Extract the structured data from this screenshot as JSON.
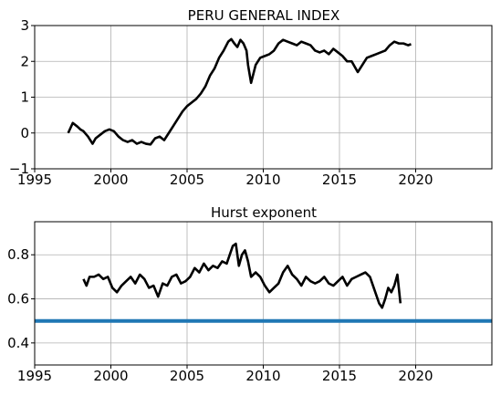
{
  "chart_data": [
    {
      "type": "line",
      "title": "PERU GENERAL INDEX",
      "xlabel": "",
      "ylabel": "",
      "xlim": [
        1995,
        2025
      ],
      "ylim": [
        -1,
        3
      ],
      "xticks": [
        1995,
        2000,
        2005,
        2010,
        2015,
        2020
      ],
      "yticks": [
        -1,
        0,
        1,
        2,
        3
      ],
      "grid": true,
      "series": [
        {
          "color": "#000000",
          "x": [
            1997.2,
            1997.5,
            1997.8,
            1998.0,
            1998.2,
            1998.5,
            1998.8,
            1999.0,
            1999.3,
            1999.6,
            1999.9,
            2000.2,
            2000.5,
            2000.8,
            2001.1,
            2001.4,
            2001.7,
            2002.0,
            2002.3,
            2002.6,
            2002.9,
            2003.2,
            2003.5,
            2003.8,
            2004.1,
            2004.4,
            2004.7,
            2005.0,
            2005.3,
            2005.6,
            2005.9,
            2006.2,
            2006.5,
            2006.8,
            2007.1,
            2007.4,
            2007.7,
            2007.9,
            2008.1,
            2008.3,
            2008.5,
            2008.7,
            2008.9,
            2009.0,
            2009.2,
            2009.5,
            2009.8,
            2010.1,
            2010.4,
            2010.7,
            2011.0,
            2011.3,
            2011.6,
            2011.9,
            2012.2,
            2012.5,
            2012.8,
            2013.1,
            2013.4,
            2013.7,
            2014.0,
            2014.3,
            2014.6,
            2014.9,
            2015.2,
            2015.5,
            2015.8,
            2016.0,
            2016.2,
            2016.5,
            2016.8,
            2017.1,
            2017.4,
            2017.7,
            2018.0,
            2018.3,
            2018.6,
            2018.9,
            2019.2,
            2019.5,
            2019.7
          ],
          "y": [
            0.0,
            0.28,
            0.18,
            0.1,
            0.05,
            -0.1,
            -0.3,
            -0.15,
            -0.05,
            0.05,
            0.1,
            0.05,
            -0.1,
            -0.2,
            -0.25,
            -0.2,
            -0.3,
            -0.25,
            -0.3,
            -0.32,
            -0.15,
            -0.1,
            -0.2,
            0.0,
            0.2,
            0.4,
            0.6,
            0.75,
            0.85,
            0.95,
            1.1,
            1.3,
            1.6,
            1.8,
            2.1,
            2.3,
            2.55,
            2.62,
            2.5,
            2.4,
            2.6,
            2.5,
            2.3,
            1.9,
            1.4,
            1.9,
            2.1,
            2.15,
            2.2,
            2.3,
            2.5,
            2.6,
            2.55,
            2.5,
            2.45,
            2.55,
            2.5,
            2.45,
            2.3,
            2.25,
            2.3,
            2.2,
            2.35,
            2.25,
            2.15,
            2.0,
            2.0,
            1.85,
            1.7,
            1.9,
            2.1,
            2.15,
            2.2,
            2.25,
            2.3,
            2.45,
            2.55,
            2.5,
            2.5,
            2.45,
            2.48
          ]
        }
      ]
    },
    {
      "type": "line",
      "title": "Hurst exponent",
      "xlabel": "",
      "ylabel": "",
      "xlim": [
        1995,
        2025
      ],
      "ylim": [
        0.3,
        0.95
      ],
      "xticks": [
        1995,
        2000,
        2005,
        2010,
        2015,
        2020
      ],
      "yticks": [
        0.4,
        0.6,
        0.8
      ],
      "grid": true,
      "series": [
        {
          "color": "#000000",
          "x": [
            1998.2,
            1998.4,
            1998.6,
            1998.9,
            1999.2,
            1999.5,
            1999.8,
            2000.1,
            2000.4,
            2000.7,
            2001.0,
            2001.3,
            2001.6,
            2001.9,
            2002.2,
            2002.5,
            2002.8,
            2003.1,
            2003.4,
            2003.7,
            2004.0,
            2004.3,
            2004.6,
            2004.9,
            2005.2,
            2005.5,
            2005.8,
            2006.1,
            2006.4,
            2006.7,
            2007.0,
            2007.3,
            2007.6,
            2007.8,
            2008.0,
            2008.2,
            2008.4,
            2008.6,
            2008.8,
            2009.0,
            2009.2,
            2009.5,
            2009.8,
            2010.1,
            2010.4,
            2010.7,
            2011.0,
            2011.3,
            2011.6,
            2011.9,
            2012.2,
            2012.5,
            2012.8,
            2013.1,
            2013.4,
            2013.7,
            2014.0,
            2014.3,
            2014.6,
            2014.9,
            2015.2,
            2015.5,
            2015.8,
            2016.1,
            2016.4,
            2016.7,
            2017.0,
            2017.2,
            2017.4,
            2017.6,
            2017.8,
            2018.0,
            2018.2,
            2018.4,
            2018.6,
            2018.8,
            2019.0
          ],
          "y": [
            0.69,
            0.66,
            0.7,
            0.7,
            0.71,
            0.69,
            0.7,
            0.65,
            0.63,
            0.66,
            0.68,
            0.7,
            0.67,
            0.71,
            0.69,
            0.65,
            0.66,
            0.61,
            0.67,
            0.66,
            0.7,
            0.71,
            0.67,
            0.68,
            0.7,
            0.74,
            0.72,
            0.76,
            0.73,
            0.75,
            0.74,
            0.77,
            0.76,
            0.8,
            0.84,
            0.85,
            0.75,
            0.8,
            0.82,
            0.77,
            0.7,
            0.72,
            0.7,
            0.66,
            0.63,
            0.65,
            0.67,
            0.72,
            0.75,
            0.71,
            0.69,
            0.66,
            0.7,
            0.68,
            0.67,
            0.68,
            0.7,
            0.67,
            0.66,
            0.68,
            0.7,
            0.66,
            0.69,
            0.7,
            0.71,
            0.72,
            0.7,
            0.66,
            0.62,
            0.58,
            0.56,
            0.6,
            0.65,
            0.63,
            0.66,
            0.71,
            0.58
          ]
        },
        {
          "color": "#1f77b4",
          "x": [
            1995,
            2025
          ],
          "y": [
            0.5,
            0.5
          ]
        }
      ]
    }
  ]
}
